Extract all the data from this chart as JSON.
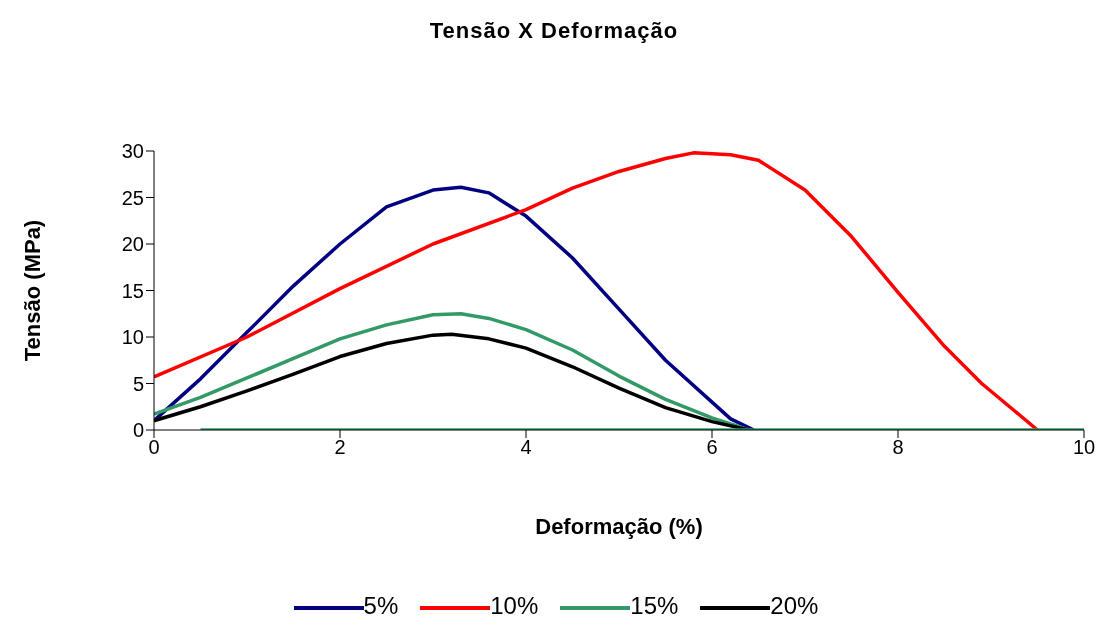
{
  "chart_data": {
    "type": "line",
    "title": "Tensão X Deformação",
    "xlabel": "Deformação (%)",
    "ylabel": "Tensão (MPa)",
    "xlim": [
      0,
      10
    ],
    "xticks": [
      0,
      2,
      4,
      6,
      8,
      10
    ],
    "ylim": [
      0,
      30
    ],
    "yticks": [
      0,
      5,
      10,
      15,
      20,
      25,
      30
    ],
    "grid": false,
    "legend": "bottom",
    "marker": "none",
    "line_style": "solid",
    "series": [
      {
        "name": "5%",
        "color": "#000080",
        "x": [
          0,
          0.5,
          1,
          1.5,
          2,
          2.5,
          3,
          3.3,
          3.6,
          4,
          4.5,
          5,
          5.5,
          6,
          6.2,
          6.45
        ],
        "values": [
          1,
          5.5,
          10.5,
          15.5,
          20,
          24,
          25.8,
          26.1,
          25.5,
          23,
          18.5,
          13,
          7.5,
          3,
          1.2,
          0
        ]
      },
      {
        "name": "10%",
        "color": "#ff0000",
        "x": [
          0,
          1,
          2,
          3,
          4,
          4.5,
          5,
          5.5,
          5.8,
          6.2,
          6.5,
          7,
          7.5,
          8,
          8.5,
          8.9,
          9.2,
          9.5
        ],
        "values": [
          5.7,
          10,
          15.2,
          20,
          23.7,
          26,
          27.8,
          29.2,
          29.8,
          29.6,
          29,
          25.8,
          20.8,
          14.8,
          9,
          5,
          2.5,
          0
        ]
      },
      {
        "name": "15%",
        "color": "#339966",
        "x": [
          0,
          0.5,
          1,
          1.5,
          2,
          2.5,
          3,
          3.3,
          3.6,
          4,
          4.5,
          5,
          5.5,
          6,
          6.4
        ],
        "values": [
          1.7,
          3.5,
          5.6,
          7.7,
          9.8,
          11.3,
          12.4,
          12.5,
          12,
          10.8,
          8.6,
          5.8,
          3.3,
          1.3,
          0
        ]
      },
      {
        "name": "20%",
        "color": "#000000",
        "x": [
          0,
          0.5,
          1,
          1.5,
          2,
          2.5,
          3,
          3.2,
          3.6,
          4,
          4.5,
          5,
          5.5,
          6,
          6.4
        ],
        "values": [
          1,
          2.5,
          4.2,
          6,
          7.9,
          9.3,
          10.2,
          10.3,
          9.8,
          8.8,
          6.8,
          4.5,
          2.4,
          0.9,
          0
        ]
      },
      {
        "color": "#339966",
        "x": [
          0.5,
          10
        ],
        "values": [
          0,
          0
        ]
      }
    ]
  }
}
